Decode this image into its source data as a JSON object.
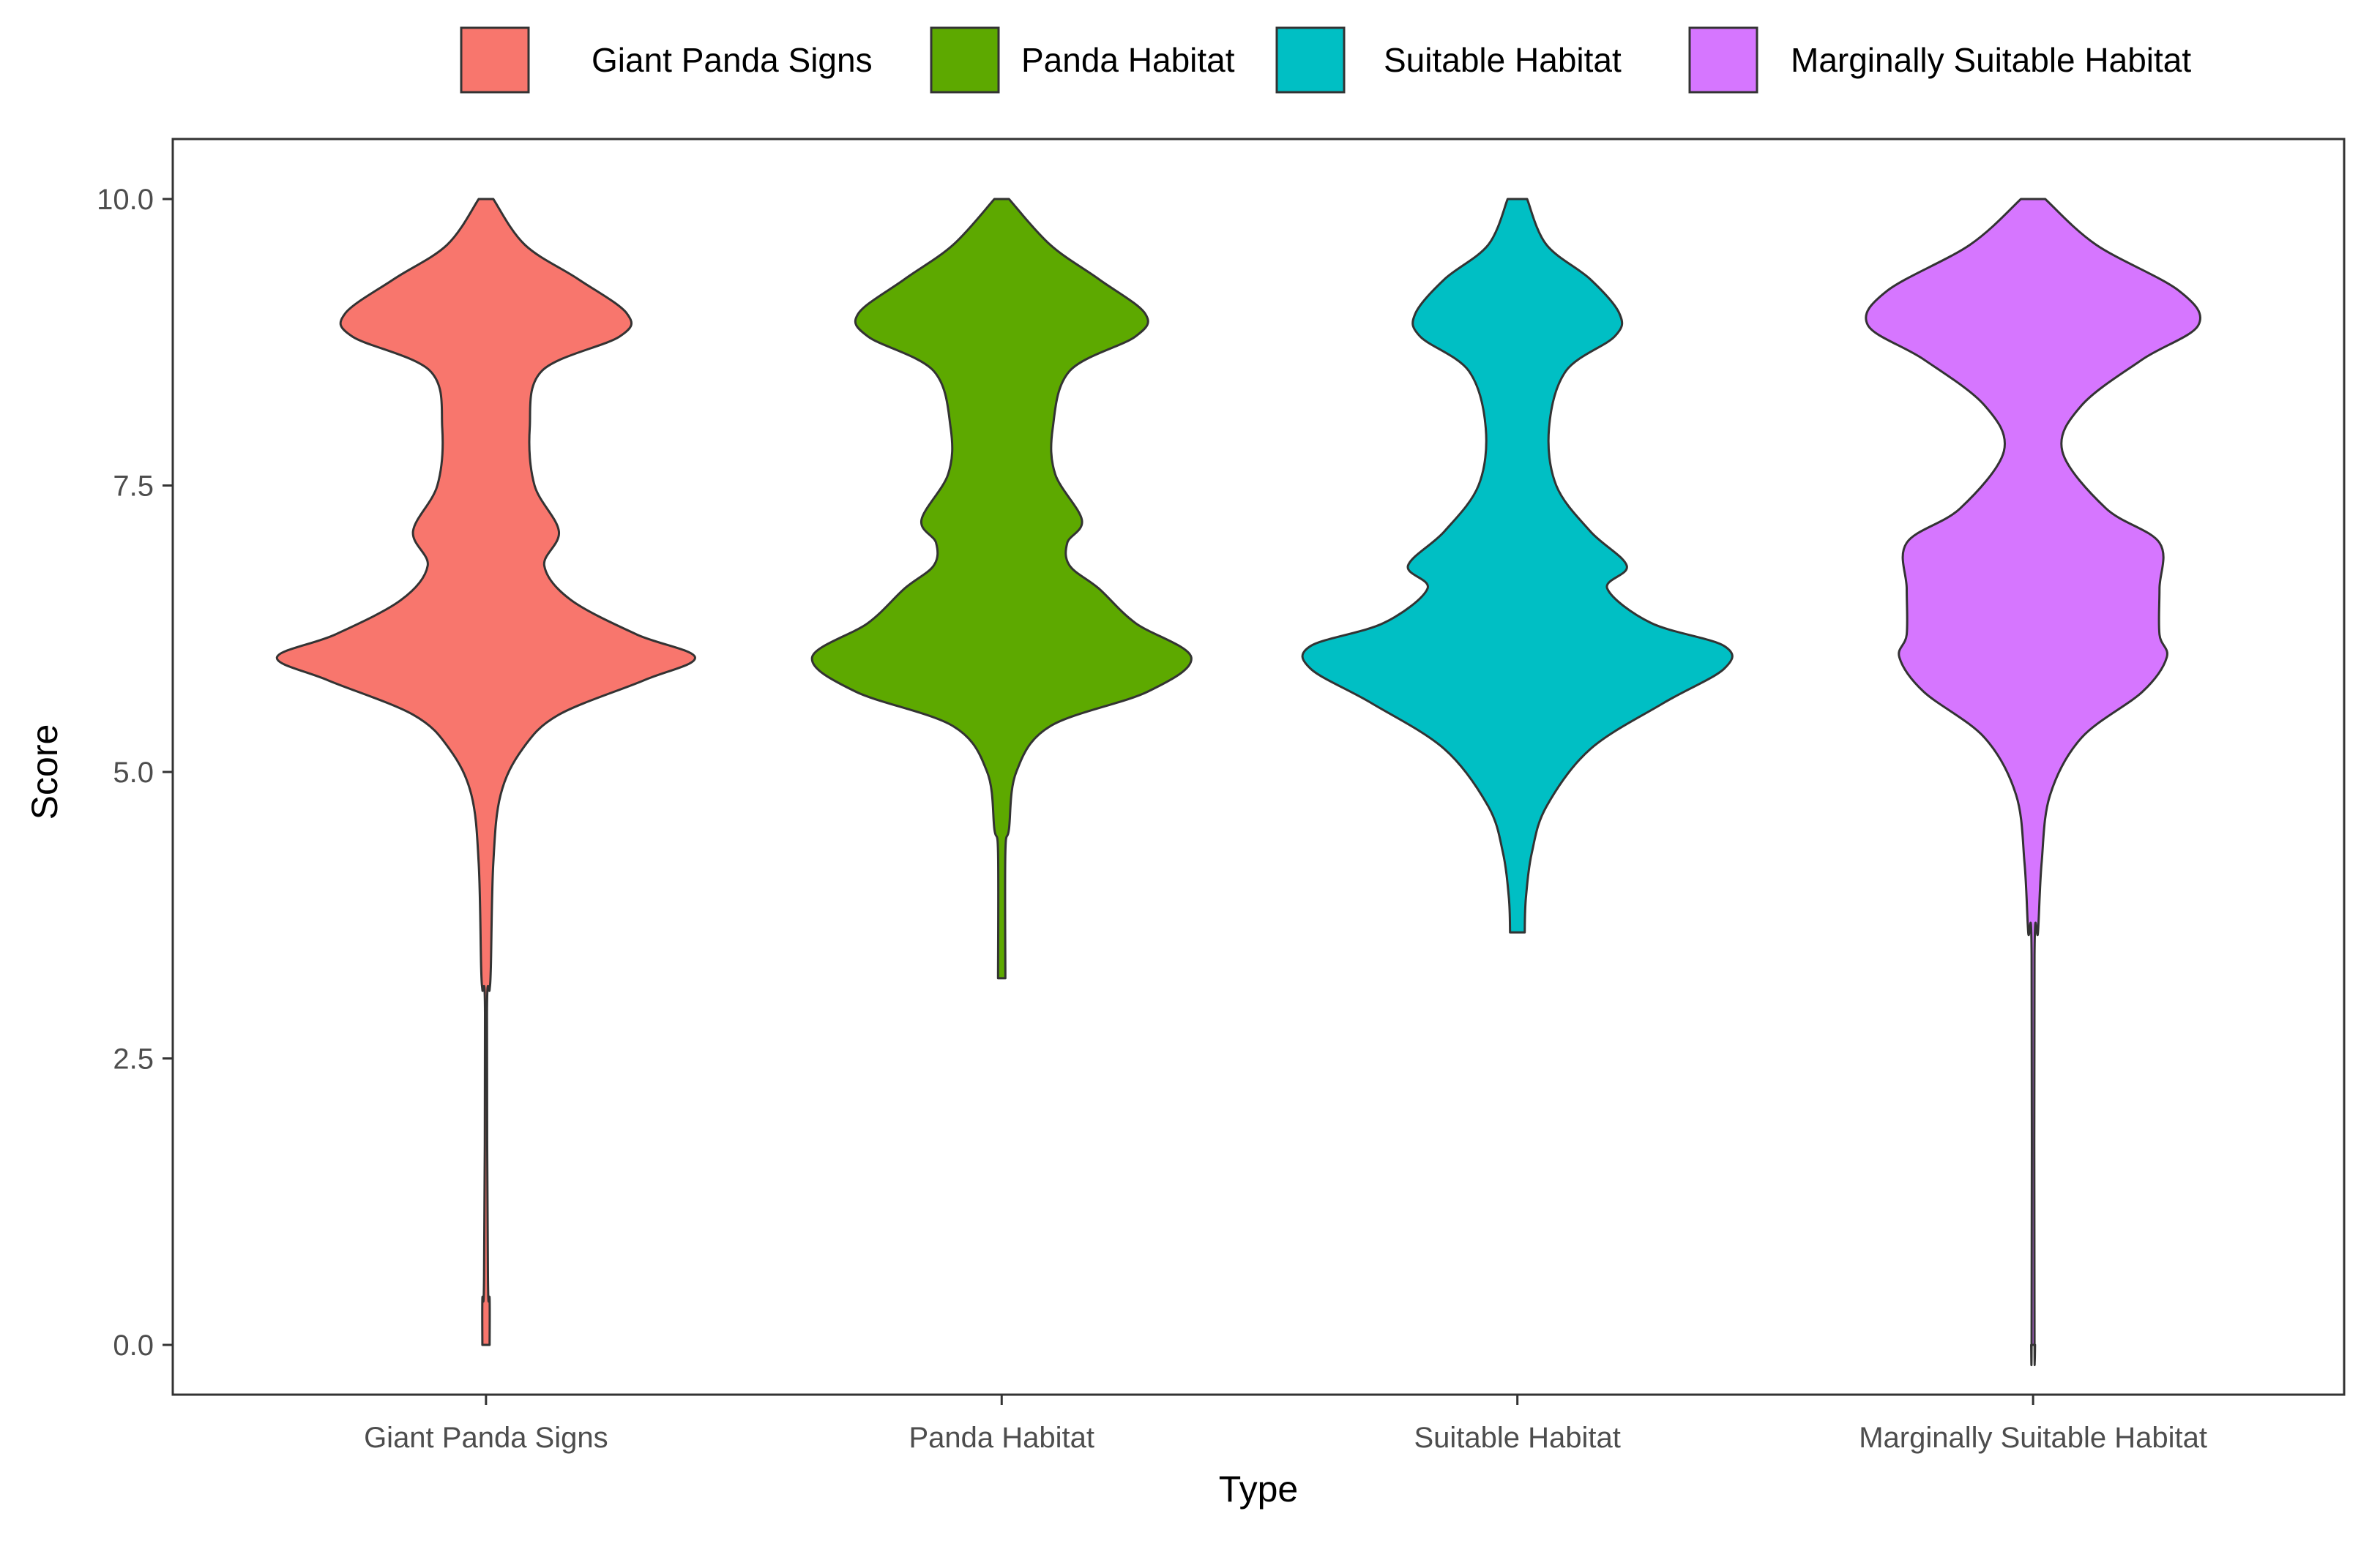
{
  "chart_data": {
    "type": "violin",
    "title": "",
    "xlabel": "Type",
    "ylabel": "Score",
    "ylim": [
      0,
      10
    ],
    "yticks": [
      "0.0",
      "2.5",
      "5.0",
      "7.5",
      "10.0"
    ],
    "grid": false,
    "legend_position": "top",
    "categories": [
      "Giant Panda Signs",
      "Panda Habitat",
      "Suitable Habitat",
      "Marginally Suitable Habitat"
    ],
    "series": [
      {
        "name": "Giant Panda Signs",
        "color": "#F8766D",
        "min": 0,
        "max": 10,
        "density_profile": [
          [
            0.0,
            0.015
          ],
          [
            0.4,
            0.015
          ],
          [
            0.6,
            0.008
          ],
          [
            2.9,
            0.004
          ],
          [
            3.1,
            0.015
          ],
          [
            3.3,
            0.02
          ],
          [
            4.2,
            0.03
          ],
          [
            4.8,
            0.06
          ],
          [
            5.2,
            0.15
          ],
          [
            5.5,
            0.3
          ],
          [
            5.8,
            0.65
          ],
          [
            6.0,
            0.86
          ],
          [
            6.2,
            0.62
          ],
          [
            6.5,
            0.35
          ],
          [
            6.8,
            0.24
          ],
          [
            7.1,
            0.3
          ],
          [
            7.5,
            0.2
          ],
          [
            8.0,
            0.18
          ],
          [
            8.5,
            0.23
          ],
          [
            8.8,
            0.55
          ],
          [
            9.0,
            0.58
          ],
          [
            9.3,
            0.38
          ],
          [
            9.6,
            0.16
          ],
          [
            10.0,
            0.03
          ]
        ]
      },
      {
        "name": "Panda Habitat",
        "color": "#5DA900",
        "min": 3.2,
        "max": 10,
        "density_profile": [
          [
            3.2,
            0.015
          ],
          [
            4.3,
            0.015
          ],
          [
            4.5,
            0.03
          ],
          [
            5.0,
            0.06
          ],
          [
            5.4,
            0.2
          ],
          [
            5.7,
            0.6
          ],
          [
            6.0,
            0.78
          ],
          [
            6.3,
            0.55
          ],
          [
            6.6,
            0.4
          ],
          [
            6.8,
            0.28
          ],
          [
            7.0,
            0.27
          ],
          [
            7.2,
            0.33
          ],
          [
            7.6,
            0.22
          ],
          [
            8.0,
            0.21
          ],
          [
            8.5,
            0.28
          ],
          [
            8.8,
            0.55
          ],
          [
            9.0,
            0.59
          ],
          [
            9.3,
            0.4
          ],
          [
            9.6,
            0.2
          ],
          [
            10.0,
            0.03
          ]
        ]
      },
      {
        "name": "Suitable Habitat",
        "color": "#00BFC4",
        "min": 3.6,
        "max": 10,
        "density_profile": [
          [
            3.6,
            0.03
          ],
          [
            3.9,
            0.035
          ],
          [
            4.3,
            0.06
          ],
          [
            4.7,
            0.12
          ],
          [
            5.2,
            0.3
          ],
          [
            5.6,
            0.6
          ],
          [
            5.9,
            0.85
          ],
          [
            6.1,
            0.85
          ],
          [
            6.3,
            0.55
          ],
          [
            6.6,
            0.37
          ],
          [
            6.8,
            0.45
          ],
          [
            7.1,
            0.3
          ],
          [
            7.5,
            0.16
          ],
          [
            8.0,
            0.13
          ],
          [
            8.5,
            0.2
          ],
          [
            8.8,
            0.4
          ],
          [
            9.0,
            0.42
          ],
          [
            9.3,
            0.3
          ],
          [
            9.6,
            0.12
          ],
          [
            10.0,
            0.04
          ]
        ]
      },
      {
        "name": "Marginally Suitable Habitat",
        "color": "#D676FF",
        "min": 0,
        "max": 10,
        "density_profile": [
          [
            0.0,
            0.008
          ],
          [
            0.1,
            0.006
          ],
          [
            3.4,
            0.006
          ],
          [
            3.6,
            0.02
          ],
          [
            4.2,
            0.035
          ],
          [
            4.8,
            0.07
          ],
          [
            5.3,
            0.2
          ],
          [
            5.7,
            0.45
          ],
          [
            6.0,
            0.55
          ],
          [
            6.2,
            0.52
          ],
          [
            6.6,
            0.52
          ],
          [
            7.0,
            0.52
          ],
          [
            7.3,
            0.3
          ],
          [
            7.8,
            0.12
          ],
          [
            8.2,
            0.2
          ],
          [
            8.6,
            0.45
          ],
          [
            8.9,
            0.68
          ],
          [
            9.2,
            0.6
          ],
          [
            9.6,
            0.26
          ],
          [
            10.0,
            0.05
          ]
        ]
      }
    ]
  }
}
